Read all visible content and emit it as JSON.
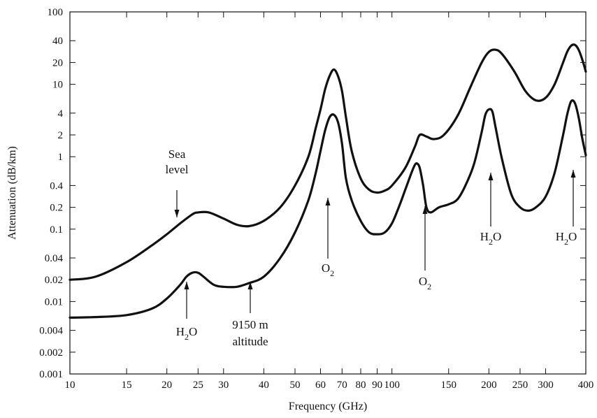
{
  "chart_data": {
    "type": "line",
    "title": "",
    "xlabel": "Frequency (GHz)",
    "ylabel": "Attenuation (dB/km)",
    "x_scale": "log",
    "y_scale": "log",
    "xlim": [
      10,
      400
    ],
    "ylim": [
      0.001,
      100
    ],
    "grid": false,
    "x_ticks": [
      10,
      15,
      20,
      25,
      30,
      40,
      50,
      60,
      70,
      80,
      90,
      100,
      150,
      200,
      250,
      300,
      400
    ],
    "y_ticks": [
      0.001,
      0.002,
      0.004,
      0.01,
      0.02,
      0.04,
      0.1,
      0.2,
      0.4,
      1,
      2,
      4,
      10,
      20,
      40,
      100
    ],
    "series": [
      {
        "name": "Sea level",
        "x": [
          10,
          12,
          15,
          18,
          20,
          22,
          24,
          25,
          27,
          30,
          33,
          36,
          40,
          45,
          50,
          55,
          58,
          60,
          62,
          64,
          66,
          68,
          70,
          72,
          75,
          80,
          85,
          90,
          95,
          100,
          110,
          118,
          122,
          128,
          135,
          145,
          160,
          175,
          190,
          200,
          210,
          220,
          240,
          260,
          280,
          300,
          320,
          340,
          350,
          360,
          370,
          380,
          390,
          400
        ],
        "values": [
          0.02,
          0.022,
          0.035,
          0.06,
          0.085,
          0.12,
          0.16,
          0.17,
          0.17,
          0.14,
          0.115,
          0.11,
          0.13,
          0.2,
          0.4,
          1.0,
          2.5,
          4.5,
          8.5,
          13,
          16,
          13,
          8,
          3.5,
          1.2,
          0.5,
          0.35,
          0.32,
          0.34,
          0.4,
          0.7,
          1.4,
          2.0,
          1.9,
          1.75,
          2.0,
          3.7,
          9,
          20,
          28,
          30,
          26,
          15,
          8,
          6,
          6.5,
          10,
          20,
          28,
          34,
          35,
          30,
          22,
          15
        ]
      },
      {
        "name": "9150 m altitude",
        "x": [
          10,
          12,
          15,
          18,
          20,
          22,
          23,
          24,
          25,
          26,
          28,
          30,
          33,
          36,
          40,
          45,
          50,
          55,
          58,
          60,
          62,
          64,
          66,
          68,
          70,
          72,
          75,
          80,
          85,
          90,
          95,
          100,
          105,
          110,
          115,
          118,
          120,
          122,
          125,
          128,
          132,
          140,
          150,
          160,
          170,
          180,
          190,
          195,
          200,
          205,
          210,
          220,
          235,
          250,
          265,
          280,
          300,
          320,
          340,
          350,
          360,
          370,
          380,
          390,
          400
        ],
        "values": [
          0.006,
          0.0061,
          0.0065,
          0.008,
          0.011,
          0.017,
          0.022,
          0.025,
          0.025,
          0.022,
          0.017,
          0.016,
          0.016,
          0.018,
          0.022,
          0.04,
          0.09,
          0.25,
          0.6,
          1.2,
          2.3,
          3.5,
          3.8,
          3.0,
          1.5,
          0.5,
          0.25,
          0.13,
          0.09,
          0.085,
          0.09,
          0.12,
          0.2,
          0.35,
          0.6,
          0.78,
          0.8,
          0.7,
          0.4,
          0.2,
          0.17,
          0.2,
          0.22,
          0.26,
          0.42,
          0.8,
          2.2,
          3.8,
          4.5,
          4.2,
          2.5,
          0.9,
          0.3,
          0.2,
          0.18,
          0.2,
          0.28,
          0.6,
          2.0,
          3.8,
          5.8,
          5.5,
          3.5,
          1.8,
          1.05
        ]
      }
    ],
    "annotations": [
      {
        "lines": [
          "Sea",
          "level"
        ]
      },
      {
        "lines": [
          "O",
          "2"
        ]
      },
      {
        "lines": [
          "O",
          "2"
        ]
      },
      {
        "lines": [
          "H",
          "2",
          "O"
        ]
      },
      {
        "lines": [
          "H",
          "2",
          "O"
        ]
      },
      {
        "lines": [
          "H",
          "2",
          "O"
        ]
      },
      {
        "lines": [
          "9150 m",
          "altitude"
        ]
      }
    ]
  }
}
